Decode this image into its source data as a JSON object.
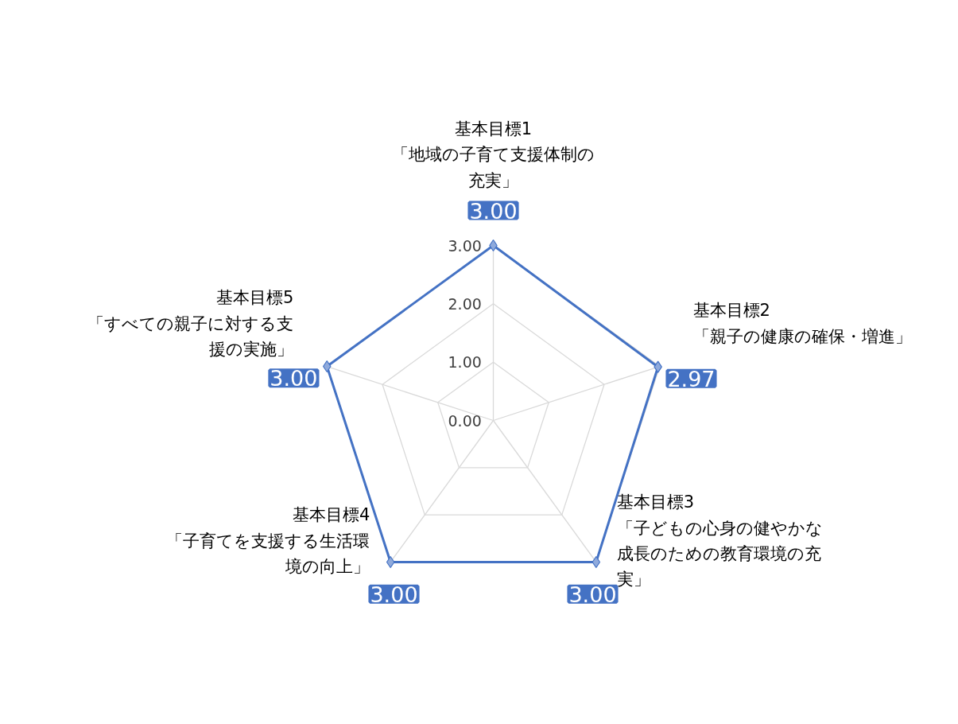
{
  "chart_data": {
    "type": "radar",
    "categories": [
      "基本目標1\n「地域の子育て支援体制の充実」",
      "基本目標2\n「親子の健康の確保・増進」",
      "基本目標3\n「子どもの心身の健やかな成長のための教育環境の充実」",
      "基本目標4\n「子育てを支援する生活環境の向上」",
      "基本目標5\n「すべての親子に対する支援の実施」"
    ],
    "series": [
      {
        "color": "#4472c4",
        "values": [
          3.0,
          2.97,
          3.0,
          3.0,
          3.0
        ],
        "value_labels": [
          "3.00",
          "2.97",
          "3.00",
          "3.00",
          "3.00"
        ]
      }
    ],
    "ylim": [
      0,
      3
    ],
    "yticks": [
      {
        "value": 0,
        "label": "0.00"
      },
      {
        "value": 1,
        "label": "1.00"
      },
      {
        "value": 2,
        "label": "2.00"
      },
      {
        "value": 3,
        "label": "3.00"
      }
    ],
    "grid": true,
    "marker": "diamond",
    "line_style": "solid",
    "legend": false
  }
}
